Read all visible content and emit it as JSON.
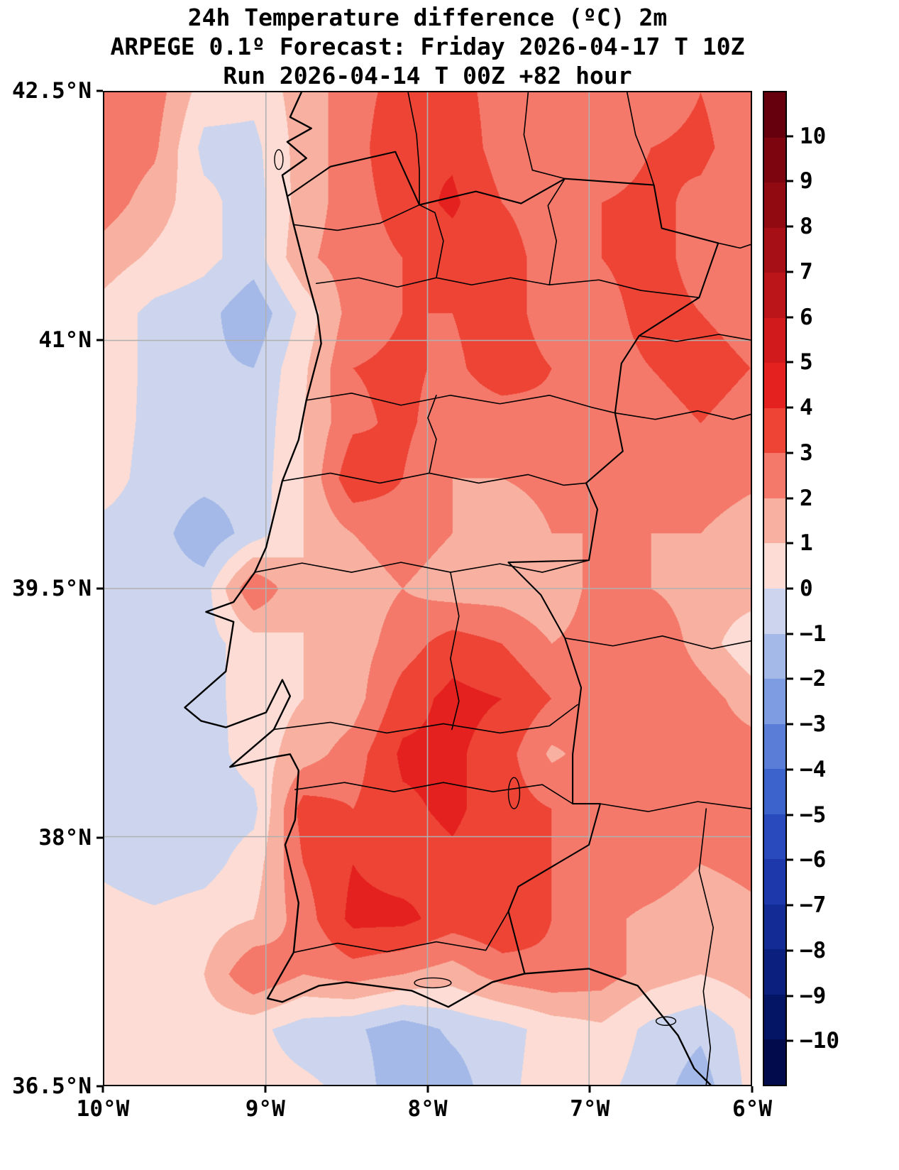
{
  "title": {
    "line1": "24h Temperature difference (ºC) 2m",
    "line2": "ARPEGE 0.1º Forecast: Friday 2026-04-17 T 10Z",
    "line3": "Run 2026-04-14 T 00Z +82 hour"
  },
  "axes": {
    "y_ticks": [
      {
        "label": "42.5°N",
        "value": 42.5
      },
      {
        "label": "41°N",
        "value": 41
      },
      {
        "label": "39.5°N",
        "value": 39.5
      },
      {
        "label": "38°N",
        "value": 38
      },
      {
        "label": "36.5°N",
        "value": 36.5
      }
    ],
    "x_ticks": [
      {
        "label": "10°W",
        "value": -10
      },
      {
        "label": "9°W",
        "value": -9
      },
      {
        "label": "8°W",
        "value": -8
      },
      {
        "label": "7°W",
        "value": -7
      },
      {
        "label": "6°W",
        "value": -6
      }
    ],
    "gridline_color": "#b0b0b0"
  },
  "colorbar": {
    "top_value": 11,
    "bottom_value": -11,
    "ticks": [
      {
        "label": "10",
        "value": 10
      },
      {
        "label": "9",
        "value": 9
      },
      {
        "label": "8",
        "value": 8
      },
      {
        "label": "7",
        "value": 7
      },
      {
        "label": "6",
        "value": 6
      },
      {
        "label": "5",
        "value": 5
      },
      {
        "label": "4",
        "value": 4
      },
      {
        "label": "3",
        "value": 3
      },
      {
        "label": "2",
        "value": 2
      },
      {
        "label": "1",
        "value": 1
      },
      {
        "label": "0",
        "value": 0
      },
      {
        "label": "−1",
        "value": -1
      },
      {
        "label": "−2",
        "value": -2
      },
      {
        "label": "−3",
        "value": -3
      },
      {
        "label": "−4",
        "value": -4
      },
      {
        "label": "−5",
        "value": -5
      },
      {
        "label": "−6",
        "value": -6
      },
      {
        "label": "−7",
        "value": -7
      },
      {
        "label": "−8",
        "value": -8
      },
      {
        "label": "−9",
        "value": -9
      },
      {
        "label": "−10",
        "value": -10
      }
    ]
  },
  "chart_data": {
    "type": "heatmap",
    "title": "24h Temperature difference (ºC) 2m",
    "subtitle": "ARPEGE 0.1º Forecast: Friday 2026-04-17 T 10Z",
    "run": "Run 2026-04-14 T 00Z +82 hour",
    "units": "ºC",
    "legend_position": "right-colorbar",
    "grid": true,
    "lon_range": [
      -10,
      -6
    ],
    "lat_range": [
      36.5,
      42.5
    ],
    "levels": [
      10,
      9,
      8,
      7,
      6,
      5,
      4,
      3,
      2,
      1,
      0,
      -1,
      -2,
      -3,
      -4,
      -5,
      -6,
      -7,
      -8,
      -9,
      -10
    ],
    "colors_high_to_low": [
      "#67000d",
      "#7c050f",
      "#910a12",
      "#a60f15",
      "#bb1419",
      "#d01a1c",
      "#e4211e",
      "#ee4436",
      "#f4796a",
      "#f8b0a0",
      "#fcdcd4",
      "#ccd5ed",
      "#a4b9e8",
      "#7d9ce1",
      "#5a7ed8",
      "#3c63cb",
      "#294abc",
      "#1d38aa",
      "#132b95",
      "#0b1f7f",
      "#051566",
      "#020c4d"
    ],
    "grid_lons": [
      -10,
      -9.69,
      -9.38,
      -9.08,
      -8.77,
      -8.46,
      -8.15,
      -7.85,
      -7.54,
      -7.23,
      -6.92,
      -6.62,
      -6.31,
      -6
    ],
    "grid_lats": [
      42.5,
      42.17,
      41.83,
      41.5,
      41.17,
      40.83,
      40.5,
      40.17,
      39.83,
      39.5,
      39.17,
      38.83,
      38.5,
      38.17,
      37.83,
      37.5,
      37.17,
      36.83,
      36.5
    ],
    "values": [
      [
        2.5,
        2.5,
        0.5,
        0.3,
        1.5,
        2.5,
        3.5,
        3.5,
        2.5,
        2.5,
        2.5,
        2.5,
        3.0,
        2.5
      ],
      [
        2.8,
        2.2,
        -0.3,
        -0.3,
        1.5,
        2.5,
        4.0,
        3.8,
        2.5,
        2.0,
        2.5,
        3.0,
        3.2,
        2.5
      ],
      [
        2.5,
        1.5,
        0.3,
        -0.5,
        1.5,
        2.5,
        3.5,
        4.2,
        3.0,
        2.5,
        3.0,
        3.2,
        2.8,
        2.2
      ],
      [
        1.5,
        0.8,
        0.3,
        -0.5,
        1.8,
        2.5,
        3.0,
        3.5,
        3.5,
        2.5,
        3.0,
        3.5,
        2.5,
        2.0
      ],
      [
        0.6,
        -0.3,
        -0.6,
        -1.8,
        0.3,
        2.5,
        3.0,
        3.0,
        3.5,
        2.5,
        2.5,
        3.5,
        3.0,
        2.5
      ],
      [
        0.6,
        -0.3,
        -0.8,
        -1.0,
        0.8,
        3.0,
        3.2,
        2.8,
        3.5,
        3.0,
        2.5,
        3.0,
        3.5,
        3.0
      ],
      [
        0.5,
        -0.3,
        -0.5,
        -0.8,
        1.0,
        2.8,
        3.2,
        2.5,
        2.5,
        2.8,
        2.5,
        2.5,
        3.0,
        2.5
      ],
      [
        0.4,
        -0.4,
        -0.6,
        -0.6,
        1.0,
        3.8,
        3.0,
        2.0,
        2.0,
        2.2,
        2.5,
        2.2,
        2.5,
        2.2
      ],
      [
        -0.3,
        -0.5,
        -1.8,
        -0.5,
        1.0,
        2.0,
        2.5,
        2.0,
        1.5,
        2.0,
        2.0,
        2.0,
        2.0,
        1.5
      ],
      [
        -0.3,
        -0.5,
        -0.5,
        3.0,
        1.0,
        1.5,
        2.0,
        1.5,
        1.5,
        1.2,
        2.5,
        2.0,
        1.5,
        1.5
      ],
      [
        -0.2,
        -0.5,
        -0.4,
        0.5,
        1.0,
        1.5,
        2.5,
        3.5,
        3.0,
        2.0,
        2.5,
        3.0,
        1.5,
        0.3
      ],
      [
        -0.4,
        -0.6,
        -0.4,
        0.5,
        1.0,
        1.5,
        3.5,
        4.3,
        4.0,
        3.0,
        2.5,
        3.0,
        2.5,
        1.5
      ],
      [
        -0.2,
        -0.5,
        -0.5,
        0.5,
        1.5,
        2.5,
        4.2,
        4.2,
        3.5,
        1.8,
        2.5,
        3.0,
        2.5,
        2.5
      ],
      [
        -0.3,
        -0.8,
        -0.6,
        -0.3,
        3.5,
        3.0,
        3.8,
        4.2,
        3.5,
        3.0,
        2.8,
        2.5,
        2.2,
        2.5
      ],
      [
        -0.2,
        -0.6,
        -0.4,
        0.5,
        3.0,
        4.0,
        3.5,
        3.8,
        3.5,
        3.0,
        2.5,
        2.5,
        2.0,
        2.2
      ],
      [
        0.4,
        0.2,
        0.5,
        1.0,
        2.5,
        4.3,
        4.3,
        3.5,
        3.8,
        3.0,
        2.2,
        1.8,
        1.5,
        1.8
      ],
      [
        0.6,
        0.5,
        1.0,
        3.0,
        2.0,
        2.5,
        2.0,
        1.5,
        2.5,
        2.8,
        2.5,
        1.5,
        1.0,
        1.5
      ],
      [
        0.8,
        0.6,
        0.5,
        0.3,
        -0.5,
        -0.8,
        -1.6,
        -0.8,
        -0.4,
        0.4,
        0.8,
        -0.3,
        -0.8,
        0.4
      ],
      [
        0.9,
        0.7,
        0.5,
        0.4,
        0.2,
        -0.3,
        -1.8,
        -1.5,
        -0.3,
        0.5,
        0.3,
        -0.5,
        -1.5,
        0.3
      ]
    ]
  }
}
